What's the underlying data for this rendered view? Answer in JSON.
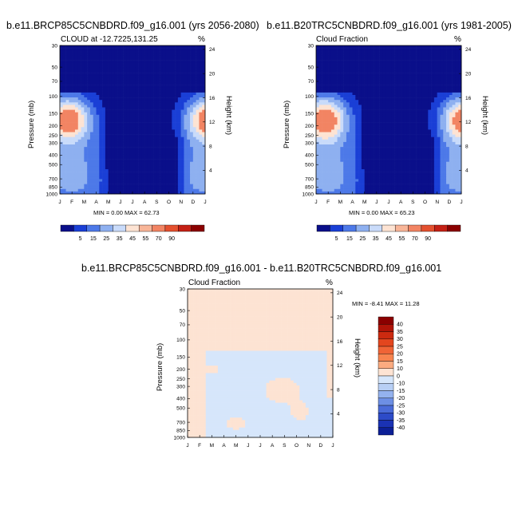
{
  "panels": [
    {
      "title": "b.e11.BRCP85C5CNBDRD.f09_g16.001 (yrs 2056-2080)",
      "left_label": "CLOUD at -12.7225,131.25",
      "right_label": "%",
      "ylabel": "Pressure (mb)",
      "ylabel_right": "Height (km)",
      "minmax": "MIN =   0.00 MAX =  62.73"
    },
    {
      "title": "b.e11.B20TRC5CNBDRD.f09_g16.001 (yrs 1981-2005)",
      "left_label": "Cloud Fraction",
      "right_label": "%",
      "ylabel": "Pressure (mb)",
      "ylabel_right": "Height (km)",
      "minmax": "MIN =   0.00 MAX =  65.23"
    },
    {
      "title": "b.e11.BRCP85C5CNBDRD.f09_g16.001 - b.e11.B20TRC5CNBDRD.f09_g16.001",
      "left_label": "Cloud Fraction",
      "right_label": "%",
      "ylabel": "Pressure (mb)",
      "ylabel_right": "Height (km)",
      "minmax": "MIN =  -8.41 MAX =  11.28"
    }
  ],
  "chart_data": [
    {
      "type": "heatmap",
      "title": "b.e11.BRCP85C5CNBDRD.f09_g16.001 (yrs 2056-2080)",
      "x_ticks": [
        "J",
        "F",
        "M",
        "A",
        "M",
        "J",
        "J",
        "A",
        "S",
        "O",
        "N",
        "D",
        "J"
      ],
      "y_ticks": [
        30,
        50,
        70,
        100,
        150,
        200,
        250,
        300,
        400,
        500,
        700,
        850,
        1000
      ],
      "y2_ticks": [
        4,
        8,
        12,
        16,
        20,
        24
      ],
      "ylabel": "Pressure (mb)",
      "y2label": "Height (km)",
      "min": 0.0,
      "max": 62.73,
      "levels": [
        5,
        15,
        25,
        35,
        45,
        55,
        70,
        90
      ],
      "colors": [
        "#0a0f8a",
        "#1a3fd6",
        "#4d79e8",
        "#8eb0f0",
        "#c9dbfa",
        "#fde3d3",
        "#f8b598",
        "#f28463",
        "#e4502f",
        "#c42015",
        "#8b0000"
      ]
    },
    {
      "type": "heatmap",
      "title": "b.e11.B20TRC5CNBDRD.f09_g16.001 (yrs 1981-2005)",
      "x_ticks": [
        "J",
        "F",
        "M",
        "A",
        "M",
        "J",
        "J",
        "A",
        "S",
        "O",
        "N",
        "D",
        "J"
      ],
      "y_ticks": [
        30,
        50,
        70,
        100,
        150,
        200,
        250,
        300,
        400,
        500,
        700,
        850,
        1000
      ],
      "y2_ticks": [
        4,
        8,
        12,
        16,
        20,
        24
      ],
      "ylabel": "Pressure (mb)",
      "y2label": "Height (km)",
      "min": 0.0,
      "max": 65.23,
      "levels": [
        5,
        15,
        25,
        35,
        45,
        55,
        70,
        90
      ],
      "colors": [
        "#0a0f8a",
        "#1a3fd6",
        "#4d79e8",
        "#8eb0f0",
        "#c9dbfa",
        "#fde3d3",
        "#f8b598",
        "#f28463",
        "#e4502f",
        "#c42015",
        "#8b0000"
      ]
    },
    {
      "type": "heatmap",
      "title": "b.e11.BRCP85C5CNBDRD.f09_g16.001 - b.e11.B20TRC5CNBDRD.f09_g16.001",
      "x_ticks": [
        "J",
        "F",
        "M",
        "A",
        "M",
        "J",
        "J",
        "A",
        "S",
        "O",
        "N",
        "D",
        "J"
      ],
      "y_ticks": [
        30,
        50,
        70,
        100,
        150,
        200,
        250,
        300,
        400,
        500,
        700,
        850,
        1000
      ],
      "y2_ticks": [
        4,
        8,
        12,
        16,
        20,
        24
      ],
      "ylabel": "Pressure (mb)",
      "y2label": "Height (km)",
      "min": -8.41,
      "max": 11.28,
      "levels": [
        40,
        35,
        30,
        25,
        20,
        15,
        10,
        0,
        -10,
        -15,
        -20,
        -25,
        -30,
        -35,
        -40
      ],
      "colors": [
        "#8b0000",
        "#b01408",
        "#cc2a10",
        "#e3461e",
        "#f06436",
        "#f8844f",
        "#fbab80",
        "#fde3d3",
        "#d6e6fb",
        "#b8cff5",
        "#94b2ee",
        "#6d8fe4",
        "#4a6bd8",
        "#2d4bc8",
        "#1a32b4",
        "#0c1f96"
      ]
    }
  ],
  "colors": {
    "deep_blue": "#0a0f8a",
    "light_peach": "#fde3d3",
    "light_blue": "#d6e6fb"
  }
}
